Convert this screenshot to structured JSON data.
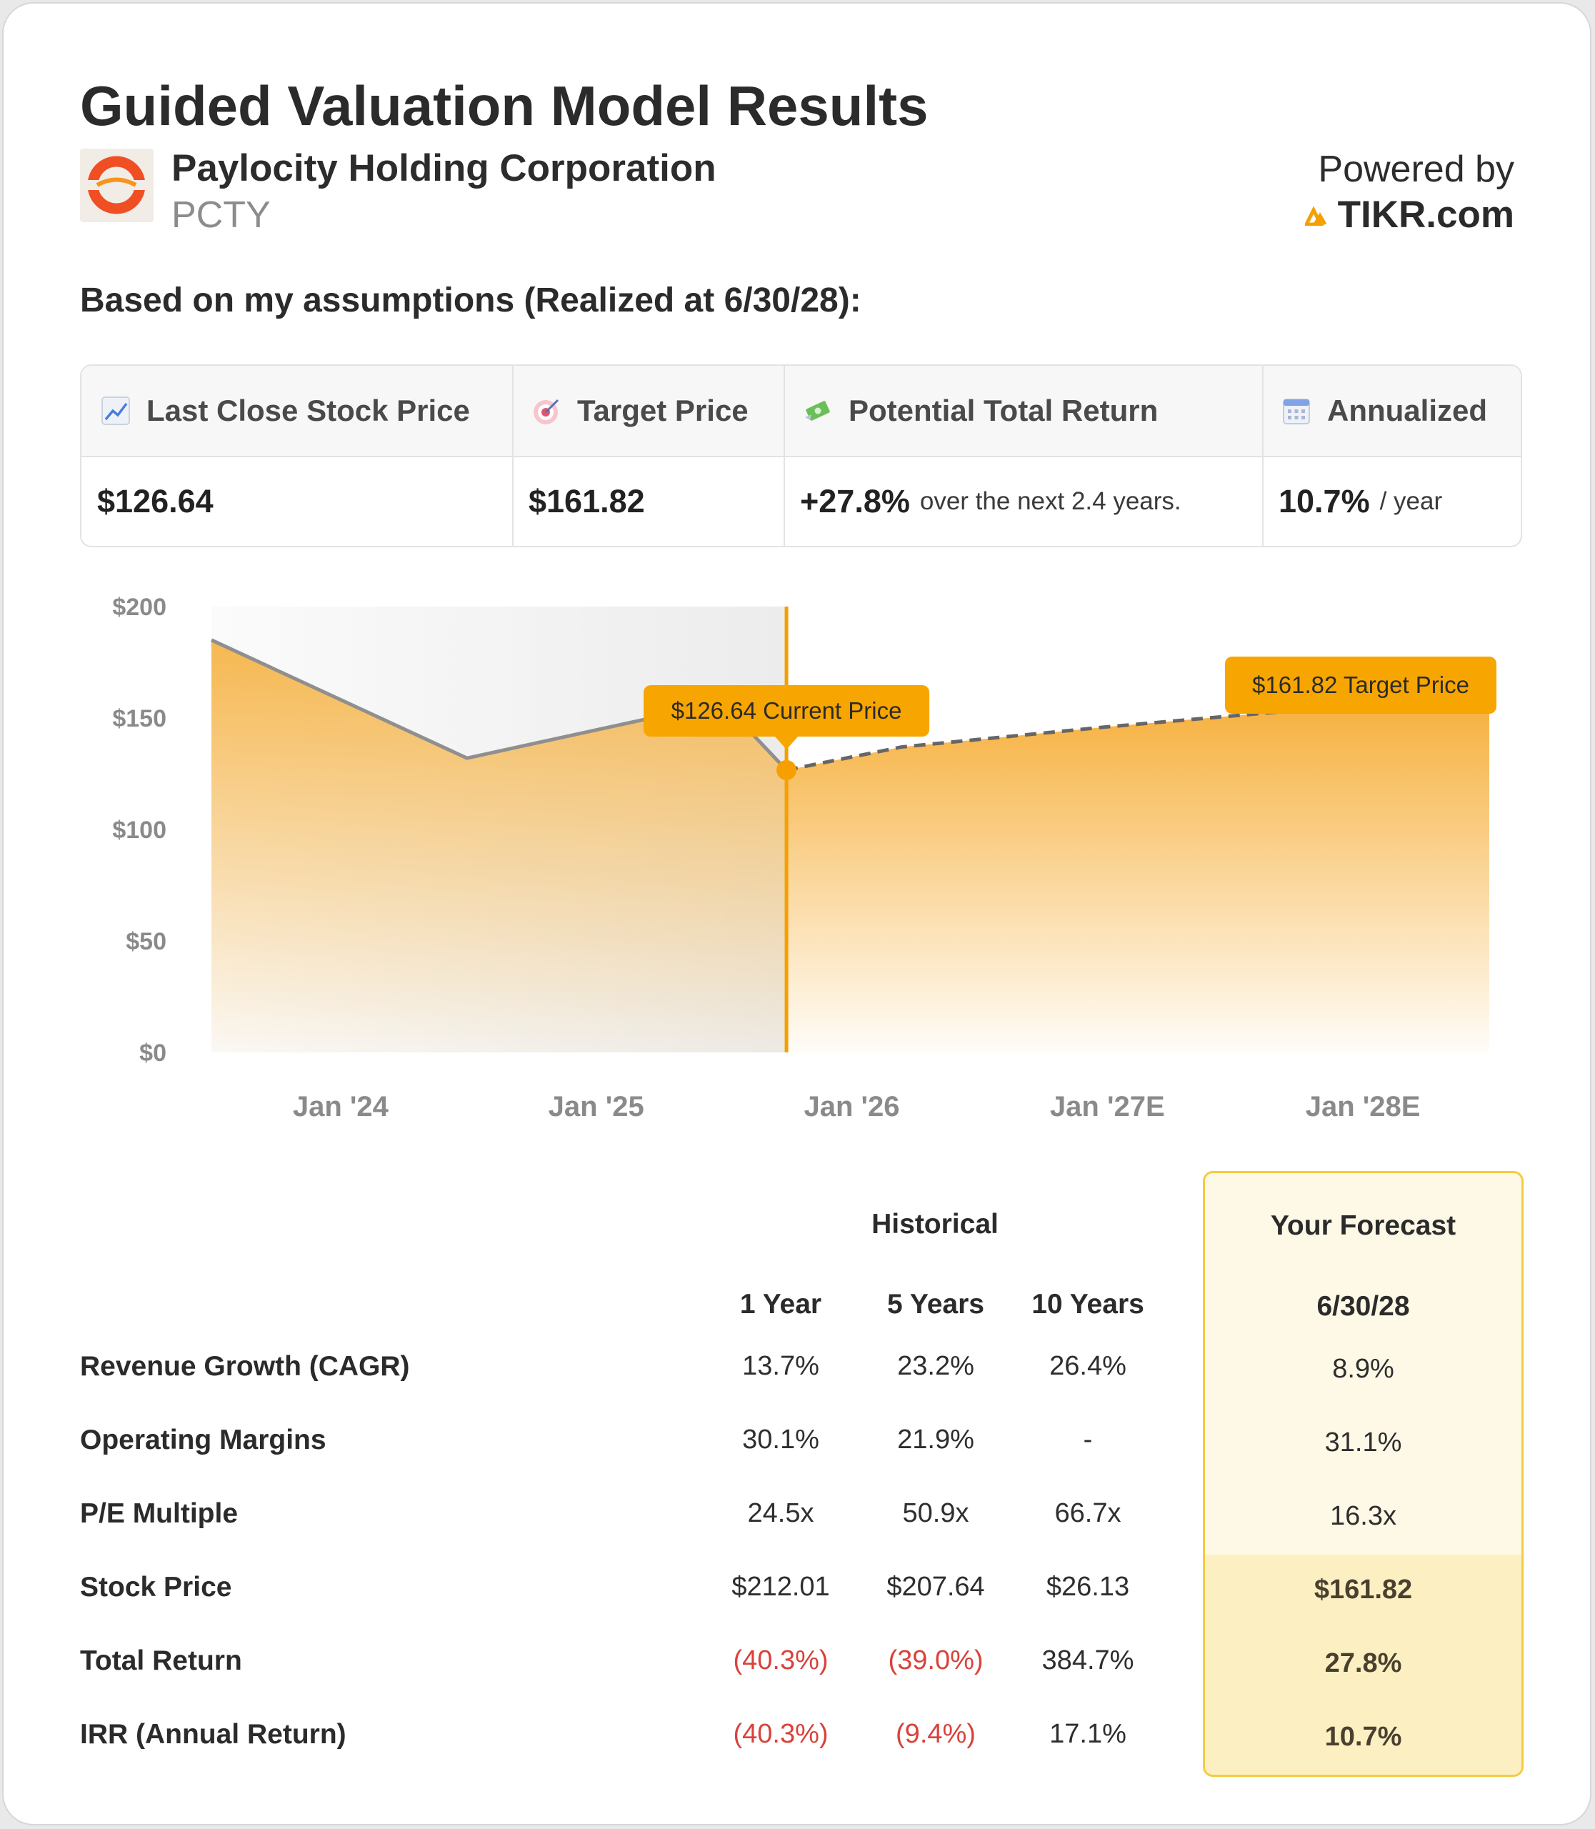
{
  "header": {
    "title": "Guided Valuation Model Results",
    "company": "Paylocity Holding Corporation",
    "ticker": "PCTY",
    "powered_by": "Powered by",
    "brand": "TIKR.com",
    "assumptions": "Based on my assumptions (Realized at 6/30/28):"
  },
  "stats": {
    "last_close_label": "Last Close Stock Price",
    "last_close_value": "$126.64",
    "target_label": "Target Price",
    "target_value": "$161.82",
    "return_label": "Potential Total Return",
    "return_value": "+27.8%",
    "return_suffix": "over the next 2.4 years.",
    "annualized_label": "Annualized",
    "annualized_value": "10.7%",
    "annualized_suffix": "/ year"
  },
  "chart_data": {
    "type": "area",
    "y_ticks": [
      "$200",
      "$150",
      "$100",
      "$50",
      "$0"
    ],
    "ylim": [
      0,
      200
    ],
    "x_ticks": [
      "Jan '24",
      "Jan '25",
      "Jan '26",
      "Jan '27E",
      "Jan '28E"
    ],
    "historical": [
      {
        "t": 2023.5,
        "price": 185
      },
      {
        "t": 2024.5,
        "price": 132
      },
      {
        "t": 2025.5,
        "price": 157
      },
      {
        "t": 2025.75,
        "price": 126.64
      }
    ],
    "forecast": [
      {
        "t": 2025.75,
        "price": 126.64
      },
      {
        "t": 2026.2,
        "price": 137
      },
      {
        "t": 2027.0,
        "price": 146
      },
      {
        "t": 2027.9,
        "price": 155
      },
      {
        "t": 2028.5,
        "price": 161.82
      }
    ],
    "current_label": "$126.64 Current Price",
    "target_label": "$161.82 Target Price",
    "colors": {
      "accent": "#f7a100",
      "line": "#8f8f8f",
      "dash": "#666666"
    }
  },
  "table": {
    "historical_label": "Historical",
    "forecast_label": "Your Forecast",
    "columns": [
      "1 Year",
      "5 Years",
      "10 Years"
    ],
    "forecast_date": "6/30/28",
    "rows": [
      {
        "label": "Revenue Growth (CAGR)",
        "values": [
          "13.7%",
          "23.2%",
          "26.4%"
        ],
        "forecast": "8.9%"
      },
      {
        "label": "Operating Margins",
        "values": [
          "30.1%",
          "21.9%",
          "-"
        ],
        "forecast": "31.1%"
      },
      {
        "label": "P/E Multiple",
        "values": [
          "24.5x",
          "50.9x",
          "66.7x"
        ],
        "forecast": "16.3x"
      },
      {
        "label": "Stock Price",
        "values": [
          "$212.01",
          "$207.64",
          "$26.13"
        ],
        "forecast": "$161.82"
      },
      {
        "label": "Total Return",
        "values": [
          "(40.3%)",
          "(39.0%)",
          "384.7%"
        ],
        "forecast": "27.8%"
      },
      {
        "label": "IRR (Annual Return)",
        "values": [
          "(40.3%)",
          "(9.4%)",
          "17.1%"
        ],
        "forecast": "10.7%"
      }
    ]
  }
}
